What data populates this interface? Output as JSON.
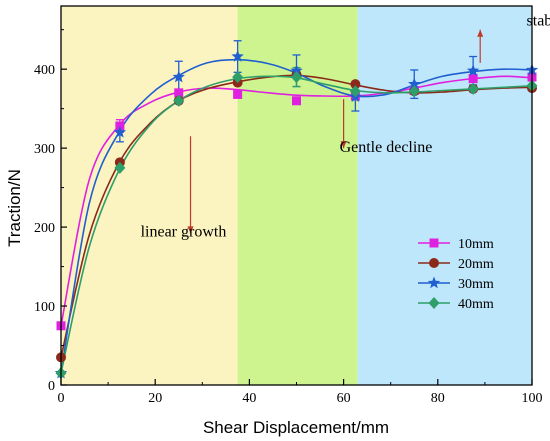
{
  "chart_data": {
    "type": "line",
    "title": "",
    "xlabel": "Shear Displacement/mm",
    "ylabel": "Traction/N",
    "xlim": [
      0,
      100
    ],
    "ylim": [
      0,
      480
    ],
    "xticks": [
      0,
      20,
      40,
      60,
      80,
      100
    ],
    "yticks": [
      0,
      100,
      200,
      300,
      400
    ],
    "grid": false,
    "legend_position": "right",
    "regions": [
      {
        "name": "linear growth",
        "x_start": 0,
        "x_end": 37.5,
        "color": "#fbf3c0"
      },
      {
        "name": "Gentle decline",
        "x_start": 37.5,
        "x_end": 63,
        "color": "#cdf48f"
      },
      {
        "name": "stable development",
        "x_start": 63,
        "x_end": 100,
        "color": "#bfe7fb"
      }
    ],
    "annotations": [
      {
        "text": "linear growth",
        "x": 26,
        "y": 188,
        "arrow": "down",
        "arrow_from": [
          27.5,
          315
        ],
        "arrow_to": [
          27.5,
          192
        ]
      },
      {
        "text": "Gentle decline",
        "x": 69,
        "y": 295,
        "arrow": "down",
        "arrow_from": [
          60,
          362
        ],
        "arrow_to": [
          60,
          300
        ]
      },
      {
        "text": "stable development",
        "x": 112,
        "y": 455,
        "arrow": "up",
        "arrow_from": [
          89,
          408
        ],
        "arrow_to": [
          89,
          450
        ]
      }
    ],
    "series": [
      {
        "name": "10mm",
        "color": "#e020e0",
        "marker": "square",
        "x": [
          0,
          12.5,
          25,
          37.5,
          50,
          62.5,
          75,
          87.5,
          100
        ],
        "y": [
          75,
          328,
          370,
          368,
          360,
          366,
          373,
          388,
          390
        ],
        "err": [
          0,
          8,
          0,
          0,
          0,
          0,
          0,
          0,
          0
        ],
        "curve_x": [
          0,
          6,
          12.5,
          19,
          25,
          31,
          37.5,
          44,
          50,
          56,
          62.5,
          69,
          75,
          81,
          87.5,
          94,
          100
        ],
        "curve_y": [
          75,
          260,
          330,
          358,
          371,
          376,
          374,
          370,
          367,
          366,
          366,
          370,
          376,
          383,
          388,
          391,
          389
        ]
      },
      {
        "name": "20mm",
        "color": "#8b2a1a",
        "marker": "circle",
        "x": [
          0,
          12.5,
          25,
          37.5,
          50,
          62.5,
          75,
          87.5,
          100
        ],
        "y": [
          35,
          282,
          360,
          383,
          393,
          381,
          372,
          375,
          376
        ],
        "err": [
          0,
          0,
          0,
          0,
          0,
          0,
          0,
          0,
          0
        ],
        "curve_x": [
          0,
          6,
          12.5,
          19,
          25,
          31,
          37.5,
          44,
          50,
          56,
          62.5,
          69,
          75,
          81,
          87.5,
          94,
          100
        ],
        "curve_y": [
          35,
          190,
          283,
          332,
          360,
          375,
          384,
          390,
          392,
          388,
          380,
          373,
          370,
          371,
          374,
          376,
          377
        ]
      },
      {
        "name": "30mm",
        "color": "#1f5fd0",
        "marker": "star",
        "x": [
          0,
          12.5,
          25,
          37.5,
          50,
          62.5,
          75,
          87.5,
          100
        ],
        "y": [
          15,
          320,
          390,
          416,
          398,
          365,
          381,
          398,
          399
        ],
        "err": [
          0,
          12,
          20,
          20,
          20,
          18,
          18,
          18,
          0
        ],
        "curve_x": [
          0,
          6,
          12.5,
          19,
          25,
          31,
          37.5,
          44,
          50,
          56,
          62.5,
          69,
          75,
          81,
          87.5,
          94,
          100
        ],
        "curve_y": [
          15,
          230,
          322,
          368,
          392,
          408,
          412,
          407,
          395,
          378,
          366,
          368,
          380,
          391,
          397,
          400,
          399
        ]
      },
      {
        "name": "40mm",
        "color": "#2e9e6a",
        "marker": "diamond",
        "x": [
          0,
          12.5,
          25,
          37.5,
          50,
          62.5,
          75,
          87.5,
          100
        ],
        "y": [
          15,
          275,
          360,
          390,
          390,
          372,
          372,
          375,
          379
        ],
        "err": [
          0,
          0,
          0,
          0,
          12,
          0,
          0,
          0,
          0
        ],
        "curve_x": [
          0,
          6,
          12.5,
          19,
          25,
          31,
          37.5,
          44,
          50,
          56,
          62.5,
          69,
          75,
          81,
          87.5,
          94,
          100
        ],
        "curve_y": [
          15,
          175,
          274,
          330,
          360,
          378,
          388,
          391,
          389,
          381,
          373,
          370,
          371,
          373,
          375,
          377,
          379
        ]
      }
    ]
  }
}
